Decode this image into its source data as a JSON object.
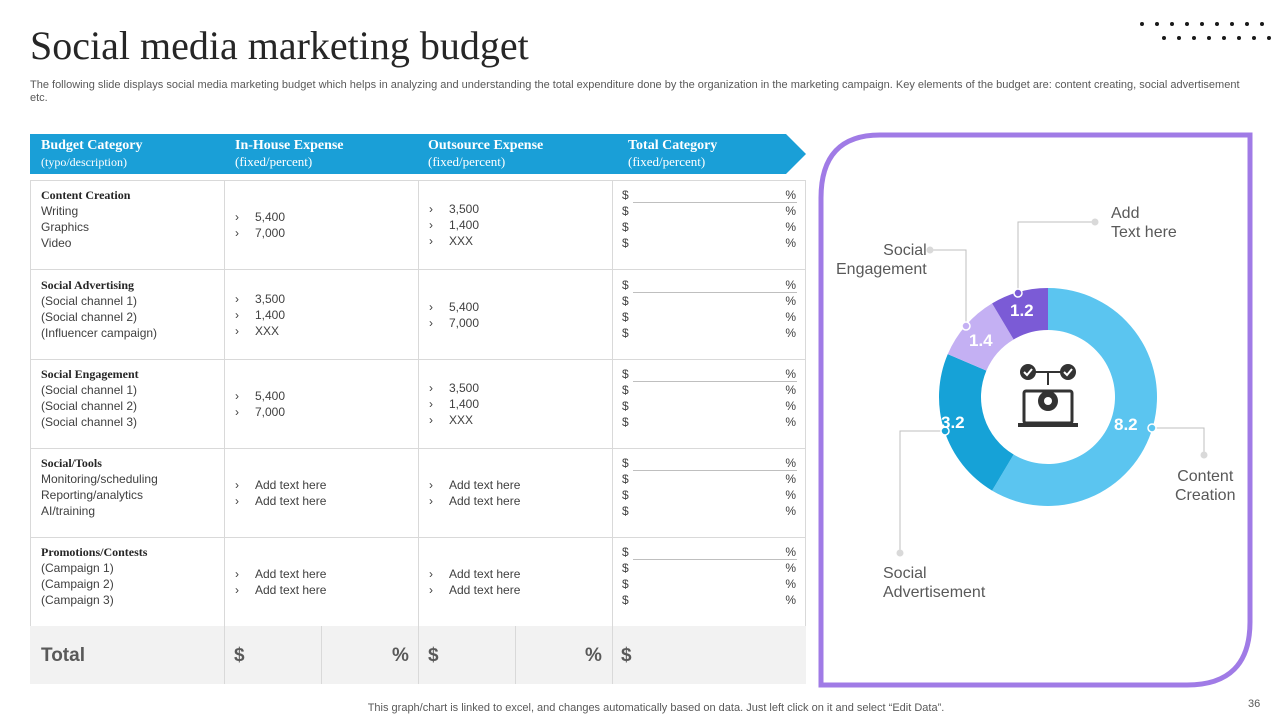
{
  "header": {
    "title": "Social media marketing budget",
    "subtitle": "The following slide displays social media marketing budget which helps in analyzing and understanding the total expenditure done by the organization  in the marketing campaign. Key elements of the budget are: content creating, social advertisement etc."
  },
  "table": {
    "columns": [
      {
        "label": "Budget Category",
        "sub": "(typo/description)"
      },
      {
        "label": "In-House Expense",
        "sub": "(fixed/percent)"
      },
      {
        "label": "Outsource Expense",
        "sub": "(fixed/percent)"
      },
      {
        "label": "Total Category",
        "sub": "(fixed/percent)"
      }
    ],
    "rows": [
      {
        "category": "Content  Creation",
        "items": [
          "Writing",
          "Graphics",
          "Video"
        ],
        "inhouse": [
          "5,400",
          "7,000"
        ],
        "outsource": [
          "3,500",
          "1,400",
          "XXX"
        ]
      },
      {
        "category": "Social Advertising",
        "items": [
          "(Social channel 1)",
          "(Social channel 2)",
          "(Influencer  campaign)"
        ],
        "inhouse": [
          "3,500",
          "1,400",
          "XXX"
        ],
        "outsource": [
          "5,400",
          "7,000"
        ]
      },
      {
        "category": "Social Engagement",
        "items": [
          "(Social channel 1)",
          "(Social channel 2)",
          "(Social channel 3)"
        ],
        "inhouse": [
          "5,400",
          "7,000"
        ],
        "outsource": [
          "3,500",
          "1,400",
          "XXX"
        ]
      },
      {
        "category": "Social/Tools",
        "items": [
          "Monitoring/scheduling",
          "Reporting/analytics",
          "AI/training"
        ],
        "inhouse": [
          "Add text here",
          "Add text here"
        ],
        "outsource": [
          "Add text here",
          "Add text here"
        ]
      },
      {
        "category": "Promotions/Contests",
        "items": [
          "(Campaign  1)",
          "(Campaign  2)",
          "(Campaign  3)"
        ],
        "inhouse": [
          "Add text here",
          "Add text here"
        ],
        "outsource": [
          "Add text here",
          "Add text here"
        ]
      }
    ],
    "currency_symbol": "$",
    "percent_symbol": "%",
    "bullet_glyph": "›",
    "total": {
      "label": "Total",
      "dollar": "$",
      "percent": "%"
    }
  },
  "chart_data": {
    "type": "pie",
    "style": "donut",
    "categories": [
      "Content Creation",
      "Social Advertisement",
      "Social Engagement",
      "Add Text here"
    ],
    "label_lines": [
      [
        "Content",
        "Creation"
      ],
      [
        "Social",
        "Advertisement"
      ],
      [
        "Social",
        "Engagement"
      ],
      [
        "Add",
        "Text here"
      ]
    ],
    "values": [
      8.2,
      3.2,
      1.4,
      1.2
    ],
    "value_labels": [
      "8.2",
      "3.2",
      "1.4",
      "1.2"
    ],
    "colors": [
      "#5bc5f0",
      "#16a2d7",
      "#c4b0f3",
      "#7b5bd6"
    ],
    "center_icon": "robot-arm-computer-icon"
  },
  "footer": {
    "note": "This graph/chart is linked to excel,  and changes automatically based on data. Just left click on it and select “Edit Data”.",
    "page_number": "36"
  },
  "colors": {
    "header_blue": "#1a9fd7",
    "panel_border": "#a07be6",
    "text_dark": "#262626"
  }
}
